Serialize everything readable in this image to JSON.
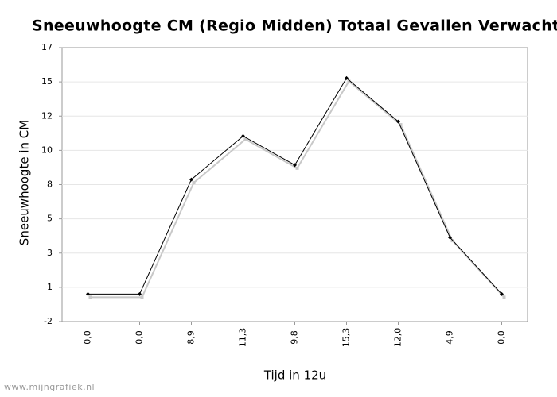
{
  "chart_data": {
    "type": "line",
    "title": "Sneeuwhoogte CM (Regio Midden) Totaal Gevallen Verwacht",
    "y_label": "Sneeuwhoogte in CM",
    "x_label": "Tijd in 12u",
    "watermark": "www.mijngrafiek.nl",
    "categories": [
      "0,0",
      "0,0",
      "8,9",
      "11,3",
      "9,8",
      "15,3",
      "12,0",
      "4,9",
      "0,0"
    ],
    "series": [
      {
        "name": "Sneeuwhoogte",
        "color": "#000000",
        "values": [
          0.2,
          0.2,
          8.1,
          11.1,
          9.1,
          15.1,
          12.1,
          4.1,
          0.2
        ]
      }
    ],
    "shadow_color": "#c8c8c8",
    "ylim": [
      -1.7,
      17.2
    ],
    "yticks": [
      {
        "value": -1.7,
        "label": "-2"
      },
      {
        "value": 0.6625,
        "label": "1"
      },
      {
        "value": 3.025,
        "label": "3"
      },
      {
        "value": 5.3875,
        "label": "5"
      },
      {
        "value": 7.75,
        "label": "8"
      },
      {
        "value": 10.1125,
        "label": "10"
      },
      {
        "value": 12.475,
        "label": "12"
      },
      {
        "value": 14.8375,
        "label": "15"
      },
      {
        "value": 17.2,
        "label": "17"
      }
    ],
    "grid": true
  }
}
